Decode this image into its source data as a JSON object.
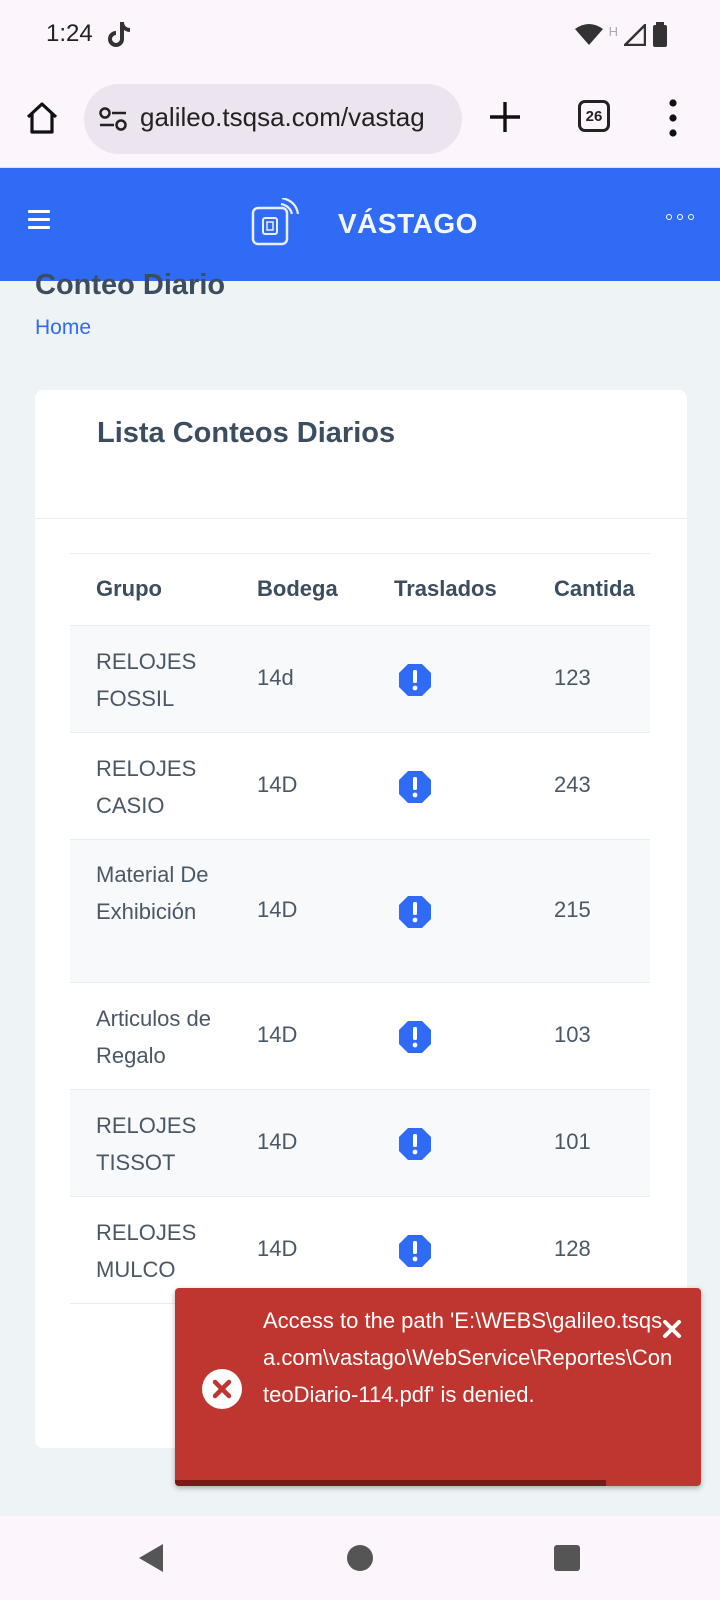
{
  "status_bar": {
    "time": "1:24",
    "network_label": "H"
  },
  "browser": {
    "url": "galileo.tsqsa.com/vastag",
    "tab_count": "26"
  },
  "app_header": {
    "brand": "VÁSTAGO"
  },
  "page": {
    "title": "Conteo Diario",
    "breadcrumb": "Home"
  },
  "card": {
    "title": "Lista Conteos Diarios",
    "columns": [
      "Grupo",
      "Bodega",
      "Traslados",
      "Cantida"
    ],
    "rows": [
      {
        "grupo": "RELOJES FOSSIL",
        "bodega": "14d",
        "traslados_icon": "alert-octagon-icon",
        "cantidad": "123"
      },
      {
        "grupo": "RELOJES CASIO",
        "bodega": "14D",
        "traslados_icon": "alert-octagon-icon",
        "cantidad": "243"
      },
      {
        "grupo": "Material De Exhibición",
        "bodega": "14D",
        "traslados_icon": "alert-octagon-icon",
        "cantidad": "215"
      },
      {
        "grupo": "Articulos de Regalo",
        "bodega": "14D",
        "traslados_icon": "alert-octagon-icon",
        "cantidad": "103"
      },
      {
        "grupo": "RELOJES TISSOT",
        "bodega": "14D",
        "traslados_icon": "alert-octagon-icon",
        "cantidad": "101"
      },
      {
        "grupo": "RELOJES MULCO",
        "bodega": "14D",
        "traslados_icon": "alert-octagon-icon",
        "cantidad": "128"
      }
    ]
  },
  "toast": {
    "message": "Access to the path 'E:\\WEBS\\galileo.tsqsa.com\\vastago\\WebService\\Reportes\\ConteoDiario-114.pdf' is denied.",
    "progress": 0.82
  },
  "colors": {
    "primary": "#2f6bf5",
    "error": "#bf3630",
    "heading": "#3b4d5e"
  }
}
